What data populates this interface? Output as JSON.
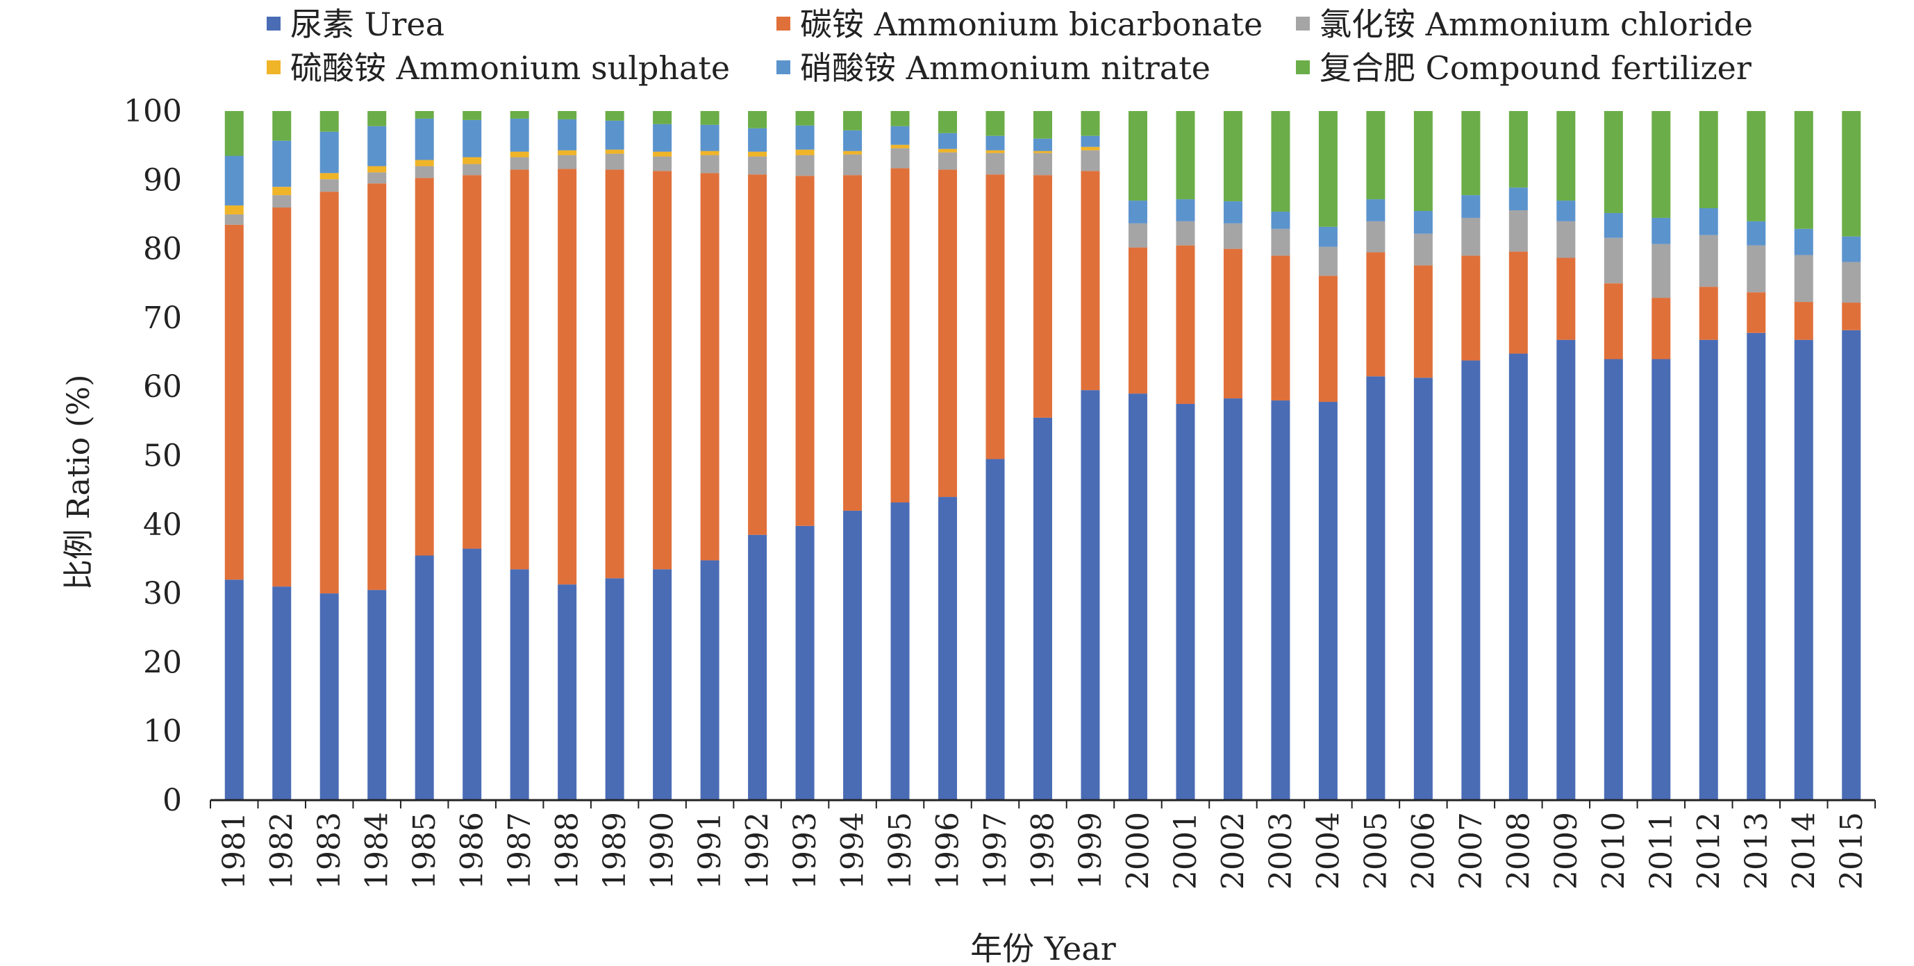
{
  "chart_data": {
    "type": "bar",
    "stacked": true,
    "title": "",
    "xlabel": "年份 Year",
    "ylabel": "比例 Ratio (%)",
    "ylim": [
      0,
      100
    ],
    "yticks": [
      "0",
      "10",
      "20",
      "30",
      "40",
      "50",
      "60",
      "70",
      "80",
      "90",
      "100"
    ],
    "grid": false,
    "legend_position": "top",
    "categories": [
      "1981",
      "1982",
      "1983",
      "1984",
      "1985",
      "1986",
      "1987",
      "1988",
      "1989",
      "1990",
      "1991",
      "1992",
      "1993",
      "1994",
      "1995",
      "1996",
      "1997",
      "1998",
      "1999",
      "2000",
      "2001",
      "2002",
      "2003",
      "2004",
      "2005",
      "2006",
      "2007",
      "2008",
      "2009",
      "2010",
      "2011",
      "2012",
      "2013",
      "2014",
      "2015"
    ],
    "series": [
      {
        "name": "尿素 Urea",
        "color": "#4a6cb5",
        "values": [
          32.0,
          31.0,
          30.0,
          30.5,
          35.5,
          36.5,
          33.5,
          31.3,
          32.2,
          33.5,
          34.8,
          38.5,
          39.8,
          42.0,
          43.2,
          44.0,
          49.5,
          55.5,
          59.5,
          59.0,
          57.5,
          58.3,
          58.0,
          57.8,
          61.5,
          61.3,
          63.8,
          64.8,
          66.8,
          64.0,
          64.0,
          66.8,
          67.8,
          66.8,
          68.2
        ]
      },
      {
        "name": "碳铵 Ammonium bicarbonate",
        "color": "#e0703a",
        "values": [
          51.5,
          55.0,
          58.3,
          59.0,
          54.8,
          54.2,
          58.0,
          60.3,
          59.3,
          57.8,
          56.2,
          52.3,
          50.8,
          48.7,
          48.5,
          47.5,
          41.3,
          35.2,
          31.8,
          21.2,
          23.0,
          21.7,
          21.0,
          18.3,
          18.0,
          16.3,
          15.2,
          14.8,
          11.9,
          11.0,
          8.9,
          7.7,
          5.9,
          5.5,
          4.0
        ]
      },
      {
        "name": "氯化铵 Ammonium chloride",
        "color": "#a5a5a5",
        "values": [
          1.5,
          1.8,
          1.8,
          1.6,
          1.7,
          1.6,
          1.8,
          2.0,
          2.3,
          2.1,
          2.6,
          2.6,
          3.0,
          3.0,
          2.9,
          2.5,
          3.1,
          3.2,
          3.0,
          3.5,
          3.5,
          3.7,
          3.9,
          4.2,
          4.5,
          4.6,
          5.5,
          6.0,
          5.3,
          6.6,
          7.8,
          7.5,
          6.8,
          6.8,
          5.9
        ]
      },
      {
        "name": "硫酸铵 Ammonium sulphate",
        "color": "#f0b428",
        "values": [
          1.3,
          1.2,
          0.9,
          0.9,
          0.9,
          1.0,
          0.8,
          0.7,
          0.6,
          0.7,
          0.6,
          0.7,
          0.8,
          0.5,
          0.5,
          0.5,
          0.4,
          0.3,
          0.5,
          0,
          0,
          0,
          0,
          0,
          0,
          0,
          0,
          0,
          0,
          0,
          0,
          0,
          0,
          0,
          0
        ]
      },
      {
        "name": "硝酸铵 Ammonium nitrate",
        "color": "#5b93cd",
        "values": [
          7.2,
          6.7,
          6.0,
          5.8,
          6.0,
          5.4,
          4.8,
          4.5,
          4.2,
          4.0,
          3.8,
          3.4,
          3.5,
          3.0,
          2.7,
          2.3,
          2.1,
          1.8,
          1.6,
          3.3,
          3.2,
          3.2,
          2.5,
          2.9,
          3.2,
          3.3,
          3.3,
          3.3,
          3.0,
          3.6,
          3.8,
          3.9,
          3.5,
          3.8,
          3.7
        ]
      },
      {
        "name": "复合肥 Compound fertilizer",
        "color": "#6bad48",
        "values": [
          6.5,
          4.3,
          3.0,
          2.2,
          1.1,
          1.3,
          1.1,
          1.2,
          1.4,
          1.9,
          2.0,
          2.5,
          2.1,
          2.8,
          2.2,
          3.2,
          3.6,
          4.0,
          3.6,
          13.0,
          12.8,
          13.1,
          14.6,
          16.8,
          12.8,
          14.5,
          12.2,
          11.1,
          13.0,
          14.8,
          15.5,
          14.1,
          16.0,
          17.1,
          18.2
        ]
      }
    ]
  }
}
